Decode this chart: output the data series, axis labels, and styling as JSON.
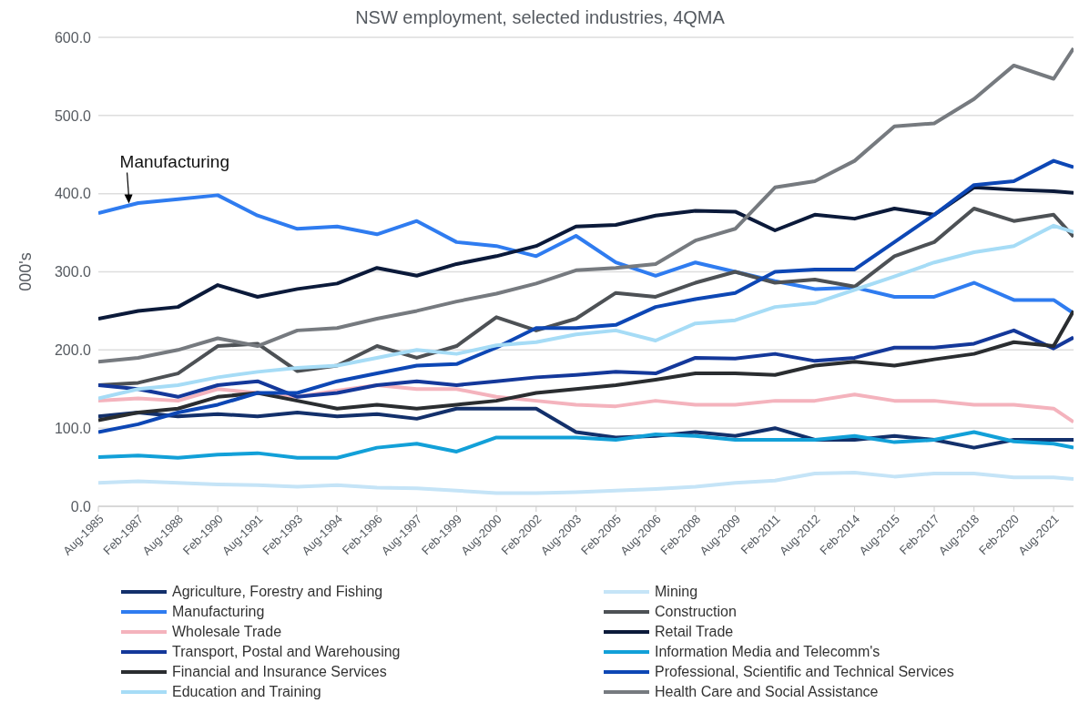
{
  "chart_data": {
    "type": "line",
    "title": "NSW employment, selected industries, 4QMA",
    "ylabel": "000's",
    "x": [
      "1985-08",
      "1987-02",
      "1988-08",
      "1990-02",
      "1991-08",
      "1993-02",
      "1994-08",
      "1996-02",
      "1997-08",
      "1999-02",
      "2000-08",
      "2002-02",
      "2003-08",
      "2005-02",
      "2006-08",
      "2008-02",
      "2009-08",
      "2011-02",
      "2012-08",
      "2014-02",
      "2015-08",
      "2017-02",
      "2018-08",
      "2020-02",
      "2021-08",
      "2022-05"
    ],
    "xlim": [
      "1985-08",
      "2022-05"
    ],
    "xticks": [
      {
        "value": "1985-08",
        "label": "Aug-1985"
      },
      {
        "value": "1987-02",
        "label": "Feb-1987"
      },
      {
        "value": "1988-08",
        "label": "Aug-1988"
      },
      {
        "value": "1990-02",
        "label": "Feb-1990"
      },
      {
        "value": "1991-08",
        "label": "Aug-1991"
      },
      {
        "value": "1993-02",
        "label": "Feb-1993"
      },
      {
        "value": "1994-08",
        "label": "Aug-1994"
      },
      {
        "value": "1996-02",
        "label": "Feb-1996"
      },
      {
        "value": "1997-08",
        "label": "Aug-1997"
      },
      {
        "value": "1999-02",
        "label": "Feb-1999"
      },
      {
        "value": "2000-08",
        "label": "Aug-2000"
      },
      {
        "value": "2002-02",
        "label": "Feb-2002"
      },
      {
        "value": "2003-08",
        "label": "Aug-2003"
      },
      {
        "value": "2005-02",
        "label": "Feb-2005"
      },
      {
        "value": "2006-08",
        "label": "Aug-2006"
      },
      {
        "value": "2008-02",
        "label": "Feb-2008"
      },
      {
        "value": "2009-08",
        "label": "Aug-2009"
      },
      {
        "value": "2011-02",
        "label": "Feb-2011"
      },
      {
        "value": "2012-08",
        "label": "Aug-2012"
      },
      {
        "value": "2014-02",
        "label": "Feb-2014"
      },
      {
        "value": "2015-08",
        "label": "Aug-2015"
      },
      {
        "value": "2017-02",
        "label": "Feb-2017"
      },
      {
        "value": "2018-08",
        "label": "Aug-2018"
      },
      {
        "value": "2020-02",
        "label": "Feb-2020"
      },
      {
        "value": "2021-08",
        "label": "Aug-2021"
      }
    ],
    "ylim": [
      0,
      600
    ],
    "yticks": [
      {
        "value": 0,
        "label": "0.0"
      },
      {
        "value": 100,
        "label": "100.0"
      },
      {
        "value": 200,
        "label": "200.0"
      },
      {
        "value": 300,
        "label": "300.0"
      },
      {
        "value": 400,
        "label": "400.0"
      },
      {
        "value": 500,
        "label": "500.0"
      },
      {
        "value": 600,
        "label": "600.0"
      }
    ],
    "grid": "y",
    "legend": "bottom",
    "marker": "none",
    "line_style": "solid",
    "annotations": [
      {
        "text": "Manufacturing",
        "x": "1986-09",
        "y": 385
      }
    ],
    "series": [
      {
        "name": "Agriculture, Forestry and Fishing",
        "color": "#13306b",
        "values": [
          115,
          120,
          115,
          118,
          115,
          120,
          115,
          118,
          112,
          125,
          125,
          125,
          95,
          88,
          90,
          95,
          90,
          100,
          85,
          85,
          90,
          85,
          75,
          85,
          85,
          85
        ]
      },
      {
        "name": "Mining",
        "color": "#c5e4f7",
        "values": [
          30,
          32,
          30,
          28,
          27,
          25,
          27,
          24,
          23,
          20,
          17,
          17,
          18,
          20,
          22,
          25,
          30,
          33,
          42,
          43,
          38,
          42,
          42,
          37,
          37,
          35
        ]
      },
      {
        "name": "Manufacturing",
        "color": "#2f7cf0",
        "values": [
          375,
          388,
          393,
          398,
          372,
          355,
          358,
          348,
          365,
          338,
          333,
          320,
          346,
          312,
          295,
          312,
          300,
          288,
          278,
          280,
          268,
          268,
          286,
          264,
          264,
          247
        ]
      },
      {
        "name": "Construction",
        "color": "#4d5155",
        "values": [
          155,
          158,
          170,
          205,
          208,
          173,
          180,
          205,
          190,
          205,
          242,
          225,
          240,
          273,
          268,
          286,
          300,
          286,
          290,
          281,
          320,
          338,
          381,
          365,
          373,
          345
        ]
      },
      {
        "name": "Wholesale Trade",
        "color": "#f4b3bd",
        "values": [
          135,
          138,
          135,
          150,
          145,
          140,
          148,
          155,
          150,
          150,
          140,
          135,
          130,
          128,
          135,
          130,
          130,
          135,
          135,
          143,
          135,
          135,
          130,
          130,
          125,
          108
        ]
      },
      {
        "name": "Retail Trade",
        "color": "#0b1a3a",
        "values": [
          240,
          250,
          255,
          283,
          268,
          278,
          285,
          305,
          295,
          310,
          320,
          333,
          358,
          360,
          372,
          378,
          377,
          353,
          373,
          368,
          381,
          373,
          408,
          405,
          403,
          401
        ]
      },
      {
        "name": "Transport, Postal and Warehousing",
        "color": "#14389a",
        "values": [
          155,
          150,
          140,
          155,
          160,
          140,
          145,
          155,
          160,
          155,
          160,
          165,
          168,
          172,
          170,
          190,
          189,
          195,
          186,
          190,
          203,
          203,
          208,
          225,
          202,
          216
        ]
      },
      {
        "name": "Information Media and Telecomm's",
        "color": "#12a0d8",
        "values": [
          63,
          65,
          62,
          66,
          68,
          62,
          62,
          75,
          80,
          70,
          88,
          88,
          88,
          85,
          92,
          90,
          85,
          85,
          85,
          90,
          82,
          85,
          95,
          83,
          80,
          75
        ]
      },
      {
        "name": "Financial and Insurance Services",
        "color": "#2a2d30",
        "values": [
          110,
          120,
          125,
          140,
          145,
          135,
          125,
          130,
          125,
          130,
          135,
          145,
          150,
          155,
          162,
          170,
          170,
          168,
          180,
          185,
          180,
          188,
          195,
          210,
          205,
          250
        ]
      },
      {
        "name": "Professional, Scientific and Technical Services",
        "color": "#0d47b5",
        "values": [
          95,
          105,
          120,
          130,
          145,
          145,
          160,
          170,
          180,
          182,
          203,
          228,
          228,
          232,
          255,
          265,
          273,
          300,
          303,
          303,
          338,
          373,
          411,
          416,
          442,
          434
        ]
      },
      {
        "name": "Education and Training",
        "color": "#a6dcf6",
        "values": [
          138,
          150,
          155,
          165,
          172,
          177,
          180,
          190,
          200,
          195,
          206,
          210,
          220,
          225,
          212,
          234,
          238,
          255,
          260,
          277,
          294,
          312,
          325,
          333,
          359,
          351
        ]
      },
      {
        "name": "Health Care and Social Assistance",
        "color": "#767a7f",
        "values": [
          185,
          190,
          200,
          215,
          205,
          225,
          228,
          240,
          250,
          262,
          272,
          285,
          302,
          305,
          310,
          340,
          355,
          408,
          416,
          442,
          486,
          490,
          521,
          564,
          547,
          586
        ]
      }
    ]
  }
}
